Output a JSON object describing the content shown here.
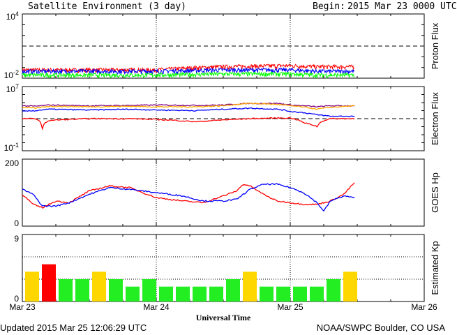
{
  "header": {
    "title": "Satellite Environment (3 day)",
    "begin_label": "Begin:",
    "begin_value": "2015 Mar 23 0000 UTC"
  },
  "footer": {
    "updated": "Updated 2015 Mar 25 12:06:29 UTC",
    "credit": "NOAA/SWPC Boulder, CO USA"
  },
  "colors": {
    "red": "#ff0000",
    "blue": "#0000ff",
    "green": "#00ff00",
    "orange": "#ffa500",
    "purple": "#800080",
    "kp_green": "#22ee22",
    "kp_yellow": "#ffd700",
    "kp_red": "#ff0000"
  },
  "chart_data": [
    {
      "type": "line",
      "ylabel": "Proton Flux",
      "y_scale": "log",
      "ylim": [
        0.01,
        10000
      ],
      "ytick_labels": [
        "10^4",
        "10^-2"
      ],
      "threshold": 10,
      "grid": "dotted vertical lines at day boundaries",
      "x_range_days": [
        0,
        3
      ],
      "series": [
        {
          "color": "red",
          "x": [
            0,
            0.5,
            1.0,
            1.5,
            2.0,
            2.2,
            2.48
          ],
          "y": [
            0.06,
            0.06,
            0.06,
            0.12,
            0.15,
            0.12,
            0.12
          ]
        },
        {
          "color": "blue",
          "x": [
            0,
            0.5,
            1.0,
            1.5,
            2.0,
            2.2,
            2.48
          ],
          "y": [
            0.045,
            0.045,
            0.045,
            0.06,
            0.06,
            0.045,
            0.045
          ]
        },
        {
          "color": "green",
          "x": [
            0,
            0.5,
            1.0,
            1.5,
            2.0,
            2.2,
            2.48
          ],
          "y": [
            0.02,
            0.02,
            0.02,
            0.025,
            0.025,
            0.02,
            0.02
          ]
        }
      ]
    },
    {
      "type": "line",
      "ylabel": "Electron Flux",
      "y_scale": "log",
      "ylim": [
        0.1,
        10000000
      ],
      "ytick_labels": [
        "10^7",
        "10^-1"
      ],
      "threshold": 1000,
      "x_range_days": [
        0,
        3
      ],
      "series": [
        {
          "color": "purple",
          "x": [
            0,
            0.1,
            0.2,
            0.5,
            0.8,
            1.0,
            1.3,
            1.5,
            1.7,
            1.9,
            2.0,
            2.2,
            2.3,
            2.48
          ],
          "y": [
            40000,
            35000,
            50000,
            40000,
            45000,
            50000,
            45000,
            50000,
            80000,
            80000,
            50000,
            30000,
            40000,
            40000
          ]
        },
        {
          "color": "orange",
          "x": [
            0,
            0.1,
            0.2,
            0.5,
            0.8,
            1.0,
            1.3,
            1.5,
            1.7,
            1.9,
            2.0,
            2.2,
            2.3,
            2.48
          ],
          "y": [
            25000,
            20000,
            35000,
            30000,
            35000,
            30000,
            30000,
            40000,
            80000,
            60000,
            40000,
            15000,
            25000,
            40000
          ]
        },
        {
          "color": "blue",
          "x": [
            0,
            0.1,
            0.2,
            0.5,
            0.8,
            1.0,
            1.3,
            1.5,
            1.7,
            1.9,
            2.0,
            2.2,
            2.3,
            2.48
          ],
          "y": [
            8000,
            10000,
            15000,
            12000,
            15000,
            12000,
            10000,
            15000,
            20000,
            15000,
            8000,
            3000,
            2000,
            2000
          ]
        },
        {
          "color": "red",
          "x": [
            0,
            0.1,
            0.15,
            0.2,
            0.5,
            0.8,
            1.0,
            1.3,
            1.5,
            1.7,
            1.9,
            2.0,
            2.1,
            2.2,
            2.3,
            2.48
          ],
          "y": [
            1000,
            1000,
            50,
            600,
            1000,
            1000,
            800,
            400,
            700,
            1000,
            1200,
            1200,
            300,
            100,
            1000,
            1000
          ]
        }
      ]
    },
    {
      "type": "line",
      "ylabel": "GOES Hp",
      "ylim": [
        0,
        200
      ],
      "ytick_labels": [
        "200",
        "0"
      ],
      "x_range_days": [
        0,
        3
      ],
      "series": [
        {
          "color": "red",
          "x": [
            0,
            0.08,
            0.15,
            0.25,
            0.35,
            0.5,
            0.65,
            0.8,
            1.0,
            1.2,
            1.35,
            1.5,
            1.6,
            1.65,
            1.7,
            1.8,
            1.9,
            2.0,
            2.1,
            2.2,
            2.3,
            2.4,
            2.48
          ],
          "y": [
            95,
            65,
            55,
            75,
            70,
            105,
            120,
            115,
            85,
            75,
            70,
            90,
            105,
            125,
            120,
            95,
            75,
            70,
            65,
            65,
            75,
            95,
            130
          ]
        },
        {
          "color": "blue",
          "x": [
            0,
            0.08,
            0.15,
            0.25,
            0.35,
            0.5,
            0.65,
            0.8,
            1.0,
            1.2,
            1.35,
            1.5,
            1.6,
            1.7,
            1.8,
            1.9,
            2.0,
            2.1,
            2.2,
            2.25,
            2.3,
            2.4,
            2.48
          ],
          "y": [
            110,
            95,
            60,
            60,
            70,
            95,
            115,
            110,
            100,
            90,
            75,
            75,
            80,
            110,
            125,
            125,
            115,
            100,
            70,
            45,
            75,
            90,
            85
          ]
        }
      ]
    },
    {
      "type": "bar",
      "ylabel": "Estimated Kp",
      "ylim": [
        0,
        9
      ],
      "ytick_labels": [
        "9",
        "0"
      ],
      "x_labels": [
        "Mar 23",
        "Mar 24",
        "Mar 25",
        "Mar 26"
      ],
      "xlabel": "Universal Time",
      "values": [
        4,
        5,
        3,
        3,
        4,
        3,
        2,
        3,
        2,
        2,
        2,
        2,
        3,
        4,
        2,
        2,
        2,
        2,
        3,
        4
      ],
      "bar_colors": [
        "yellow",
        "red",
        "green",
        "green",
        "yellow",
        "green",
        "green",
        "green",
        "green",
        "green",
        "green",
        "green",
        "green",
        "yellow",
        "green",
        "green",
        "green",
        "green",
        "green",
        "yellow"
      ]
    }
  ]
}
